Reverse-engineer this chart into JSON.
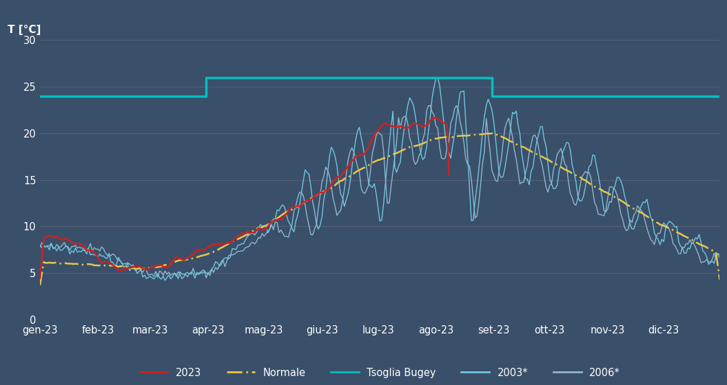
{
  "background_color": "#3a4f6a",
  "plot_bg_color": "#3a4f6a",
  "grid_color": "#556070",
  "text_color": "#ffffff",
  "title": "T [°C]",
  "ylim": [
    0,
    31
  ],
  "yticks": [
    0,
    5,
    10,
    15,
    20,
    25,
    30
  ],
  "months": [
    "gen-23",
    "feb-23",
    "mar-23",
    "apr-23",
    "mag-23",
    "giu-23",
    "lug-23",
    "ago-23",
    "set-23",
    "ott-23",
    "nov-23",
    "dic-23"
  ],
  "colors": {
    "c2023": "#cc2222",
    "normale": "#e8c84a",
    "tsoglia": "#00c0c0",
    "c2003": "#6fc8e0",
    "c2006": "#90b8d0"
  }
}
